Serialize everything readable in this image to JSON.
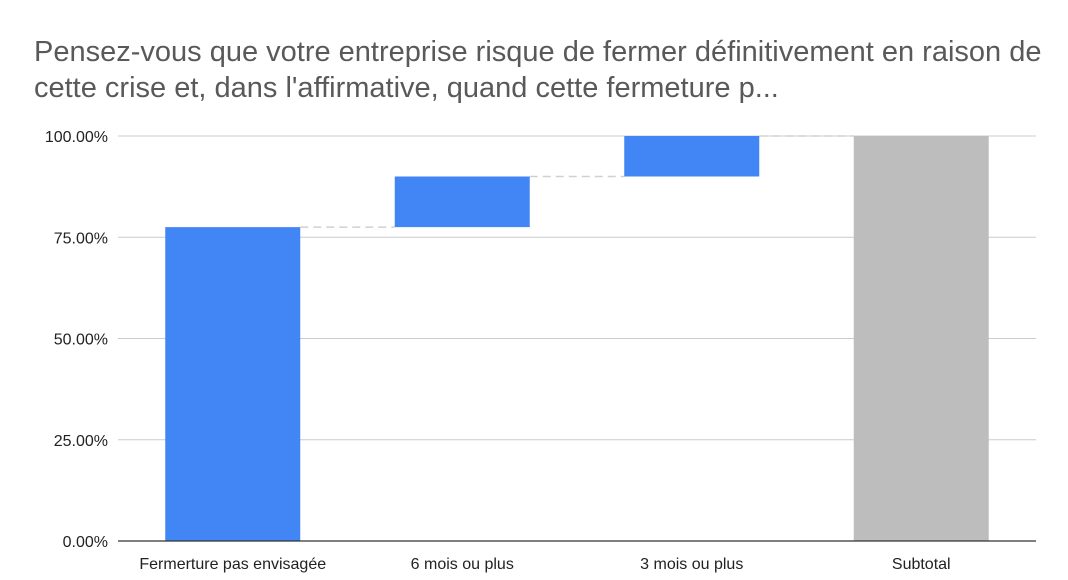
{
  "chart_data": {
    "type": "bar",
    "variant": "waterfall",
    "title": "Pensez-vous que votre entreprise risque de fermer définitivement en raison de cette crise et, dans l'affirmative, quand cette fermeture p...",
    "categories": [
      "Fermerture pas envisagée",
      "6 mois ou plus",
      "3 mois ou plus",
      "Subtotal"
    ],
    "values": [
      77.5,
      12.5,
      10.0,
      100.0
    ],
    "is_total": [
      false,
      false,
      false,
      true
    ],
    "y_ticks": [
      "0.00%",
      "25.00%",
      "50.00%",
      "75.00%",
      "100.00%"
    ],
    "ylim": [
      0,
      100
    ],
    "grid": true,
    "legend": "none",
    "colors": {
      "increase": "#4285f4",
      "total": "#bdbdbd",
      "grid": "#cccccc",
      "connector": "#d0d0d0",
      "axis": "#333333",
      "title": "#595959"
    }
  }
}
